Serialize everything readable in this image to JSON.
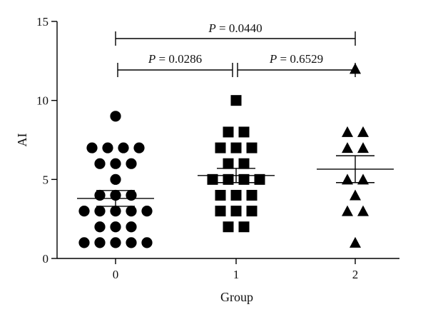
{
  "chart_data": {
    "type": "scatter",
    "title": "",
    "xlabel": "Group",
    "ylabel": "AI",
    "ylim": [
      0,
      15
    ],
    "yticks": [
      0,
      5,
      10,
      15
    ],
    "categories": [
      "0",
      "1",
      "2"
    ],
    "grid": false,
    "series": [
      {
        "category": "0",
        "marker": "circle",
        "points": [
          9,
          7,
          7,
          7,
          7,
          6,
          6,
          6,
          5,
          4,
          4,
          4,
          3,
          3,
          3,
          3,
          3,
          2,
          2,
          2,
          1,
          1,
          1,
          1,
          1
        ],
        "mean": 3.8,
        "sem_low": 3.3,
        "sem_high": 4.3
      },
      {
        "category": "1",
        "marker": "square",
        "points": [
          10,
          8,
          8,
          7,
          7,
          7,
          6,
          6,
          5,
          5,
          5,
          5,
          4,
          4,
          4,
          3,
          3,
          3,
          2,
          2
        ],
        "mean": 5.25,
        "sem_low": 4.8,
        "sem_high": 5.7
      },
      {
        "category": "2",
        "marker": "triangle",
        "points": [
          12,
          8,
          8,
          7,
          7,
          5,
          5,
          4,
          3,
          3,
          1
        ],
        "mean": 5.65,
        "sem_low": 4.8,
        "sem_high": 6.5
      }
    ],
    "annotations": [
      {
        "from": "0",
        "to": "2",
        "label_prefix": "P",
        "label_value": " = 0.0440"
      },
      {
        "from": "0",
        "to": "1",
        "label_prefix": "P",
        "label_value": " = 0.0286"
      },
      {
        "from": "1",
        "to": "2",
        "label_prefix": "P",
        "label_value": " = 0.6529"
      }
    ]
  }
}
